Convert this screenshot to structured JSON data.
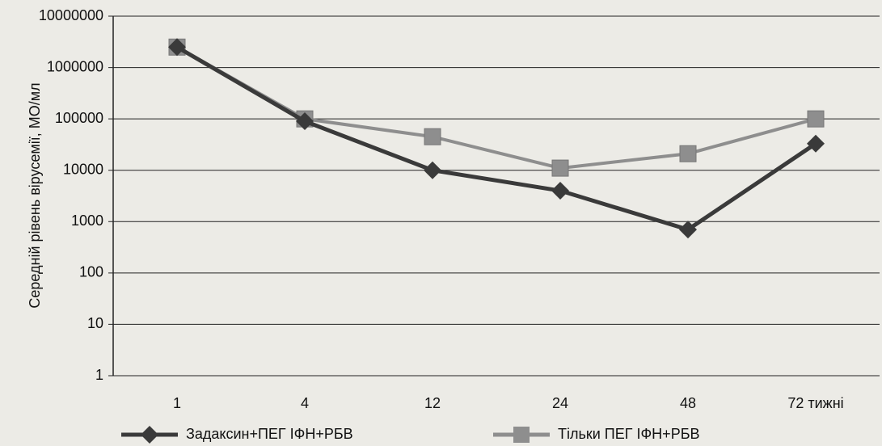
{
  "chart_data": {
    "type": "line",
    "y_label": "Середній рівень вірусемії, МО/мл",
    "categories": [
      "1",
      "4",
      "12",
      "24",
      "48",
      "72 тижні"
    ],
    "series": [
      {
        "name": "Задаксин+ПЕГ ІФН+РБВ",
        "color": "#3a3a3a",
        "marker": "diamond",
        "values": [
          2500000,
          90000,
          10000,
          4000,
          700,
          33000
        ]
      },
      {
        "name": "Тільки ПЕГ ІФН+РБВ",
        "color": "#8e8e8e",
        "marker": "square",
        "values": [
          2500000,
          100000,
          45000,
          11000,
          21000,
          100000
        ]
      }
    ],
    "log_scale": true,
    "ylim": [
      1,
      10000000
    ],
    "yticks": [
      1,
      10,
      100,
      1000,
      10000,
      100000,
      1000000,
      10000000
    ],
    "grid": true
  }
}
